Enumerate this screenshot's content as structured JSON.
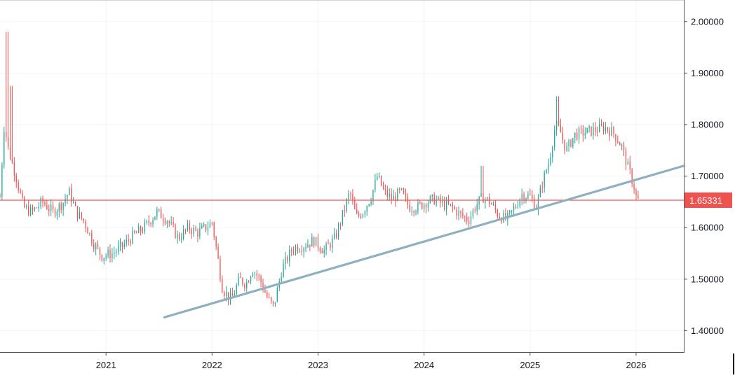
{
  "colors": {
    "up": "#26a69a",
    "down": "#ef5350",
    "price_line": "#ef5350",
    "trendline": "#8fb0bf",
    "grid": "#f0f3fa",
    "axis": "#555555",
    "text": "#131722",
    "background": "#ffffff"
  },
  "chart_data": {
    "type": "candlestick",
    "interval": "weekly",
    "x_range": [
      2020.0,
      2026.45
    ],
    "y_range": [
      1.3585,
      2.0418
    ],
    "ylim": [
      1.3585,
      2.0418
    ],
    "grid": true,
    "y_ticks": [
      "2.00000",
      "1.90000",
      "1.80000",
      "1.70000",
      "1.60000",
      "1.50000",
      "1.40000"
    ],
    "y_tick_values": [
      2.0,
      1.9,
      1.8,
      1.7,
      1.6,
      1.5,
      1.4
    ],
    "x_ticks": [
      "2021",
      "2022",
      "2023",
      "2024",
      "2025",
      "2026"
    ],
    "x_tick_values": [
      2021,
      2022,
      2023,
      2024,
      2025,
      2026
    ],
    "last_price": 1.65331,
    "last_price_label": "1.65331",
    "trendline": {
      "x1": 2021.55,
      "y1": 1.426,
      "x2": 2026.45,
      "y2": 1.72
    },
    "close_path_anchors": [
      [
        2020.0,
        1.66
      ],
      [
        2020.04,
        1.8
      ],
      [
        2020.08,
        1.75
      ],
      [
        2020.15,
        1.7
      ],
      [
        2020.22,
        1.64
      ],
      [
        2020.3,
        1.63
      ],
      [
        2020.4,
        1.65
      ],
      [
        2020.5,
        1.63
      ],
      [
        2020.6,
        1.65
      ],
      [
        2020.65,
        1.67
      ],
      [
        2020.72,
        1.63
      ],
      [
        2020.8,
        1.61
      ],
      [
        2020.88,
        1.57
      ],
      [
        2020.96,
        1.545
      ],
      [
        2021.06,
        1.55
      ],
      [
        2021.16,
        1.565
      ],
      [
        2021.26,
        1.585
      ],
      [
        2021.36,
        1.6
      ],
      [
        2021.48,
        1.63
      ],
      [
        2021.58,
        1.615
      ],
      [
        2021.68,
        1.58
      ],
      [
        2021.78,
        1.6
      ],
      [
        2021.86,
        1.59
      ],
      [
        2021.94,
        1.6
      ],
      [
        2022.0,
        1.61
      ],
      [
        2022.04,
        1.56
      ],
      [
        2022.1,
        1.48
      ],
      [
        2022.18,
        1.46
      ],
      [
        2022.26,
        1.5
      ],
      [
        2022.32,
        1.49
      ],
      [
        2022.38,
        1.52
      ],
      [
        2022.45,
        1.5
      ],
      [
        2022.52,
        1.465
      ],
      [
        2022.58,
        1.445
      ],
      [
        2022.66,
        1.52
      ],
      [
        2022.76,
        1.56
      ],
      [
        2022.86,
        1.565
      ],
      [
        2022.96,
        1.575
      ],
      [
        2023.06,
        1.555
      ],
      [
        2023.16,
        1.58
      ],
      [
        2023.24,
        1.63
      ],
      [
        2023.3,
        1.67
      ],
      [
        2023.36,
        1.62
      ],
      [
        2023.42,
        1.63
      ],
      [
        2023.5,
        1.66
      ],
      [
        2023.56,
        1.7
      ],
      [
        2023.62,
        1.67
      ],
      [
        2023.7,
        1.655
      ],
      [
        2023.78,
        1.67
      ],
      [
        2023.86,
        1.64
      ],
      [
        2023.94,
        1.64
      ],
      [
        2024.02,
        1.65
      ],
      [
        2024.1,
        1.655
      ],
      [
        2024.18,
        1.645
      ],
      [
        2024.26,
        1.64
      ],
      [
        2024.34,
        1.625
      ],
      [
        2024.42,
        1.615
      ],
      [
        2024.48,
        1.64
      ],
      [
        2024.55,
        1.66
      ],
      [
        2024.62,
        1.65
      ],
      [
        2024.7,
        1.625
      ],
      [
        2024.78,
        1.615
      ],
      [
        2024.86,
        1.64
      ],
      [
        2024.92,
        1.665
      ],
      [
        2025.0,
        1.66
      ],
      [
        2025.06,
        1.64
      ],
      [
        2025.12,
        1.69
      ],
      [
        2025.18,
        1.73
      ],
      [
        2025.24,
        1.8
      ],
      [
        2025.28,
        1.79
      ],
      [
        2025.34,
        1.75
      ],
      [
        2025.42,
        1.78
      ],
      [
        2025.52,
        1.785
      ],
      [
        2025.62,
        1.79
      ],
      [
        2025.7,
        1.795
      ],
      [
        2025.78,
        1.785
      ],
      [
        2025.86,
        1.76
      ],
      [
        2025.92,
        1.72
      ],
      [
        2025.98,
        1.68
      ],
      [
        2026.0,
        1.66
      ],
      [
        2026.02,
        1.65331
      ]
    ]
  }
}
